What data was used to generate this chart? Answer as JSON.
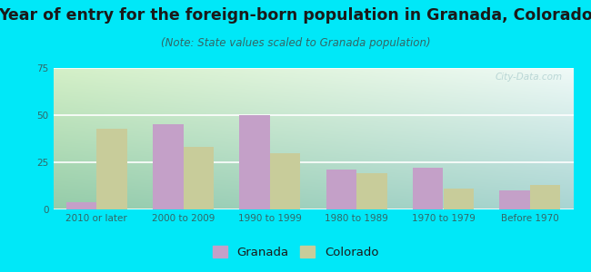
{
  "title": "Year of entry for the foreign-born population in Granada, Colorado",
  "subtitle": "(Note: State values scaled to Granada population)",
  "categories": [
    "2010 or later",
    "2000 to 2009",
    "1990 to 1999",
    "1980 to 1989",
    "1970 to 1979",
    "Before 1970"
  ],
  "granada_values": [
    4,
    45,
    50,
    21,
    22,
    10
  ],
  "colorado_values": [
    43,
    33,
    30,
    19,
    11,
    13
  ],
  "granada_color": "#c4a0c8",
  "colorado_color": "#c8cc9a",
  "background_outer": "#00e8f8",
  "ylim": [
    0,
    75
  ],
  "yticks": [
    0,
    25,
    50,
    75
  ],
  "bar_width": 0.35,
  "title_fontsize": 12.5,
  "subtitle_fontsize": 8.5,
  "tick_fontsize": 7.5,
  "legend_fontsize": 9.5,
  "watermark": "City-Data.com"
}
